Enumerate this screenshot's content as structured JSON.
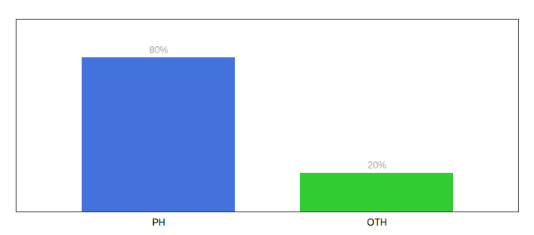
{
  "chart_data": {
    "type": "bar",
    "categories": [
      "PH",
      "OTH"
    ],
    "values": [
      80,
      20
    ],
    "value_labels": [
      "80%",
      "20%"
    ],
    "colors": [
      "#4472DD",
      "#33CC33"
    ],
    "ylim": [
      0,
      100
    ],
    "data_labels": true,
    "tick_labels": "x"
  }
}
